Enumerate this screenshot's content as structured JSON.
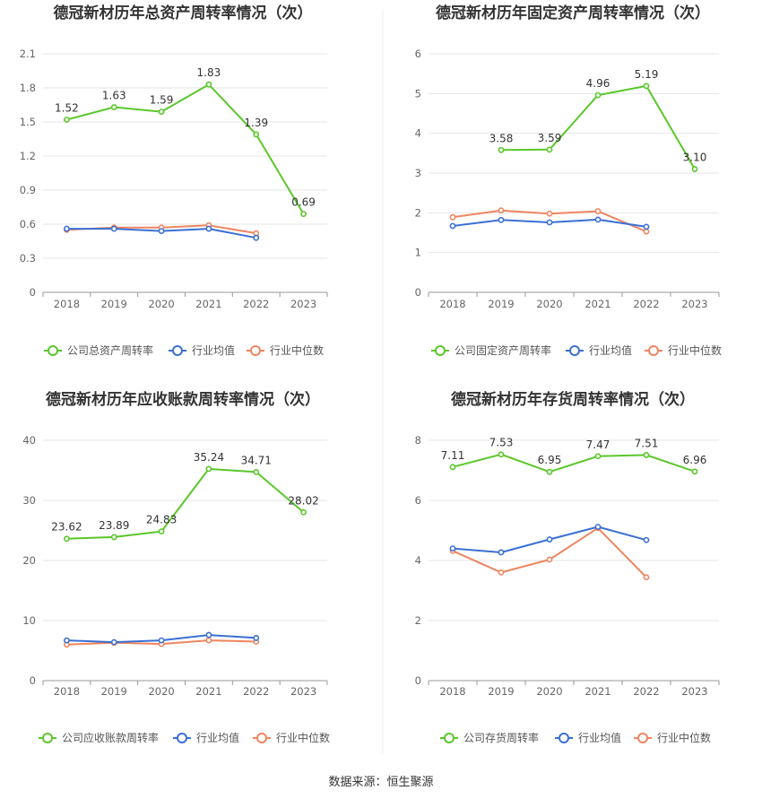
{
  "source_label": "数据来源：恒生聚源",
  "colors": {
    "company": "#5bc72b",
    "industry_avg": "#3a70d4",
    "industry_median": "#ef8560",
    "grid": "#e6e6e6",
    "axis": "#999999"
  },
  "chart_data": [
    {
      "type": "line",
      "title": "德冠新材历年总资产周转率情况（次）",
      "categories": [
        "2018",
        "2019",
        "2020",
        "2021",
        "2022",
        "2023"
      ],
      "yticks": [
        "0",
        "0.3",
        "0.6",
        "0.9",
        "1.2",
        "1.5",
        "1.8",
        "2.1"
      ],
      "ylim": [
        0,
        2.1
      ],
      "grid": true,
      "legend_position": "bottom",
      "series": [
        {
          "name": "公司总资产周转率",
          "values": [
            1.52,
            1.63,
            1.59,
            1.83,
            1.39,
            0.69
          ],
          "labels": [
            "1.52",
            "1.63",
            "1.59",
            "1.83",
            "1.39",
            "0.69"
          ]
        },
        {
          "name": "行业均值",
          "values": [
            0.56,
            0.56,
            0.54,
            0.56,
            0.48,
            null
          ]
        },
        {
          "name": "行业中位数",
          "values": [
            0.55,
            0.57,
            0.57,
            0.59,
            0.52,
            null
          ]
        }
      ]
    },
    {
      "type": "line",
      "title": "德冠新材历年固定资产周转率情况（次）",
      "categories": [
        "2018",
        "2019",
        "2020",
        "2021",
        "2022",
        "2023"
      ],
      "yticks": [
        "0",
        "1",
        "2",
        "3",
        "4",
        "5",
        "6"
      ],
      "ylim": [
        0,
        6
      ],
      "grid": true,
      "legend_position": "bottom",
      "series": [
        {
          "name": "公司固定资产周转率",
          "values": [
            null,
            3.58,
            3.59,
            4.96,
            5.19,
            3.1
          ],
          "labels": [
            null,
            "3.58",
            "3.59",
            "4.96",
            "5.19",
            "3.10"
          ]
        },
        {
          "name": "行业均值",
          "values": [
            1.67,
            1.82,
            1.76,
            1.83,
            1.65,
            null
          ]
        },
        {
          "name": "行业中位数",
          "values": [
            1.89,
            2.06,
            1.98,
            2.04,
            1.53,
            null
          ]
        }
      ]
    },
    {
      "type": "line",
      "title": "德冠新材历年应收账款周转率情况（次）",
      "categories": [
        "2018",
        "2019",
        "2020",
        "2021",
        "2022",
        "2023"
      ],
      "yticks": [
        "0",
        "10",
        "20",
        "30",
        "40"
      ],
      "ylim": [
        0,
        40
      ],
      "grid": true,
      "legend_position": "bottom",
      "series": [
        {
          "name": "公司应收账款周转率",
          "values": [
            23.62,
            23.89,
            24.83,
            35.24,
            34.71,
            28.02
          ],
          "labels": [
            "23.62",
            "23.89",
            "24.83",
            "35.24",
            "34.71",
            "28.02"
          ]
        },
        {
          "name": "行业均值",
          "values": [
            6.7,
            6.4,
            6.7,
            7.6,
            7.1,
            null
          ]
        },
        {
          "name": "行业中位数",
          "values": [
            6.0,
            6.3,
            6.1,
            6.7,
            6.5,
            null
          ]
        }
      ]
    },
    {
      "type": "line",
      "title": "德冠新材历年存货周转率情况（次）",
      "categories": [
        "2018",
        "2019",
        "2020",
        "2021",
        "2022",
        "2023"
      ],
      "yticks": [
        "0",
        "2",
        "4",
        "6",
        "8"
      ],
      "ylim": [
        0,
        8
      ],
      "grid": true,
      "legend_position": "bottom",
      "series": [
        {
          "name": "公司存货周转率",
          "values": [
            7.11,
            7.53,
            6.95,
            7.47,
            7.51,
            6.96
          ],
          "labels": [
            "7.11",
            "7.53",
            "6.95",
            "7.47",
            "7.51",
            "6.96"
          ]
        },
        {
          "name": "行业均值",
          "values": [
            4.4,
            4.27,
            4.7,
            5.12,
            4.68,
            null
          ]
        },
        {
          "name": "行业中位数",
          "values": [
            4.32,
            3.6,
            4.03,
            5.08,
            3.44,
            null
          ]
        }
      ]
    }
  ]
}
